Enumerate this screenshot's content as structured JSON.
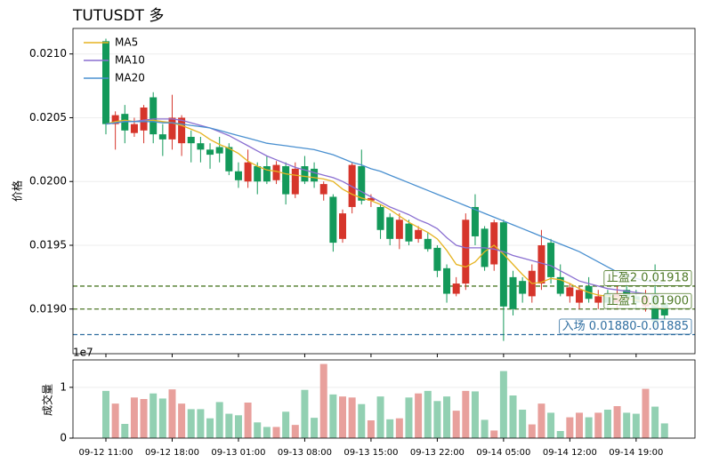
{
  "chart_data": {
    "type": "candlestick",
    "title": "TUTUSDT  多",
    "ylabel": "价格",
    "categories": [
      "09-12 11:00",
      null,
      null,
      null,
      null,
      null,
      null,
      "09-12 18:00",
      null,
      null,
      null,
      null,
      null,
      null,
      "09-13 01:00",
      null,
      null,
      null,
      null,
      null,
      null,
      "09-13 08:00",
      null,
      null,
      null,
      null,
      null,
      null,
      "09-13 15:00",
      null,
      null,
      null,
      null,
      null,
      null,
      "09-13 22:00",
      null,
      null,
      null,
      null,
      null,
      null,
      "09-14 05:00",
      null,
      null,
      null,
      null,
      null,
      null,
      "09-14 12:00",
      null,
      null,
      null,
      null,
      null,
      null,
      "09-14 19:00",
      null,
      null,
      null
    ],
    "open": [
      0.0211,
      0.02045,
      0.02053,
      0.02038,
      0.0204,
      0.02066,
      0.02037,
      0.02033,
      0.0203,
      0.02035,
      0.0203,
      0.02025,
      0.02027,
      0.02027,
      0.02008,
      0.02,
      0.02012,
      0.02012,
      0.02001,
      0.02012,
      0.0199,
      0.02012,
      0.0201,
      0.0199,
      0.01988,
      0.01955,
      0.0198,
      0.02012,
      0.01985,
      0.0198,
      0.01972,
      0.01955,
      0.01967,
      0.01955,
      0.01955,
      0.01948,
      0.01932,
      0.01912,
      0.0192,
      0.0198,
      0.01963,
      0.01935,
      0.01968,
      0.01925,
      0.01922,
      0.0191,
      0.0192,
      0.01952,
      0.01925,
      0.0191,
      0.01905,
      0.01918,
      0.01905,
      0.01912,
      0.01905,
      0.01915,
      0.0191,
      0.01902,
      0.01912,
      0.01905
    ],
    "high": [
      0.02112,
      0.02055,
      0.0206,
      0.0205,
      0.0206,
      0.0207,
      0.02045,
      0.02068,
      0.02052,
      0.0204,
      0.02035,
      0.0203,
      0.02035,
      0.0203,
      0.02015,
      0.02025,
      0.02015,
      0.0202,
      0.02016,
      0.02015,
      0.02015,
      0.0202,
      0.02015,
      0.02,
      0.0199,
      0.01978,
      0.02015,
      0.02025,
      0.0199,
      0.01982,
      0.01975,
      0.01975,
      0.0197,
      0.01965,
      0.0196,
      0.0195,
      0.01935,
      0.01925,
      0.01975,
      0.0199,
      0.01965,
      0.0197,
      0.0197,
      0.0193,
      0.01925,
      0.01935,
      0.01962,
      0.01955,
      0.01935,
      0.0192,
      0.01918,
      0.01925,
      0.01915,
      0.01915,
      0.01918,
      0.0192,
      0.01915,
      0.01915,
      0.01935,
      0.0191
    ],
    "low": [
      0.02037,
      0.02025,
      0.0203,
      0.02035,
      0.0203,
      0.0203,
      0.0202,
      0.02025,
      0.0202,
      0.02015,
      0.02015,
      0.0201,
      0.02015,
      0.02005,
      0.01995,
      0.01995,
      0.0199,
      0.01998,
      0.01998,
      0.01982,
      0.01987,
      0.01998,
      0.01995,
      0.01985,
      0.01945,
      0.01952,
      0.01975,
      0.01982,
      0.0198,
      0.01955,
      0.0195,
      0.01947,
      0.0195,
      0.01952,
      0.01945,
      0.01925,
      0.01905,
      0.0191,
      0.01915,
      0.0195,
      0.0193,
      0.0193,
      0.01875,
      0.01895,
      0.01905,
      0.01905,
      0.01915,
      0.0192,
      0.0191,
      0.01905,
      0.019,
      0.01905,
      0.019,
      0.019,
      0.019,
      0.01905,
      0.019,
      0.01898,
      0.01885,
      0.0189
    ],
    "close": [
      0.02045,
      0.02052,
      0.0204,
      0.02045,
      0.02058,
      0.02037,
      0.02033,
      0.0205,
      0.0205,
      0.0203,
      0.02025,
      0.02021,
      0.02022,
      0.02008,
      0.02001,
      0.02015,
      0.02,
      0.02,
      0.02013,
      0.0199,
      0.0201,
      0.02,
      0.02,
      0.01998,
      0.01952,
      0.01975,
      0.02013,
      0.01985,
      0.01987,
      0.01962,
      0.01955,
      0.0197,
      0.01953,
      0.01962,
      0.01947,
      0.0193,
      0.01912,
      0.0192,
      0.0197,
      0.01957,
      0.01933,
      0.01968,
      0.01902,
      0.019,
      0.01912,
      0.0193,
      0.0195,
      0.01925,
      0.01912,
      0.01917,
      0.01915,
      0.01908,
      0.0191,
      0.01905,
      0.01912,
      0.01908,
      0.01905,
      0.0191,
      0.0189,
      0.01895
    ],
    "up_color": "#d6352b",
    "down_color": "#13995a",
    "series": [
      {
        "name": "MA5",
        "color": "#e6b422",
        "values": [
          0.02045,
          0.02047,
          0.02048,
          0.02047,
          0.02048,
          0.02048,
          0.02047,
          0.02046,
          0.02044,
          0.02041,
          0.02038,
          0.02033,
          0.02029,
          0.02026,
          0.02022,
          0.02016,
          0.02012,
          0.02009,
          0.02008,
          0.02006,
          0.02005,
          0.02004,
          0.02003,
          0.02002,
          0.02,
          0.01994,
          0.0199,
          0.01987,
          0.01985,
          0.01982,
          0.01978,
          0.01973,
          0.01968,
          0.01964,
          0.0196,
          0.01955,
          0.01946,
          0.01935,
          0.01933,
          0.01937,
          0.01945,
          0.0195,
          0.01943,
          0.01935,
          0.01927,
          0.0192,
          0.01921,
          0.01924,
          0.01923,
          0.0192,
          0.01916,
          0.01913,
          0.01911,
          0.0191,
          0.01909,
          0.01908,
          0.01907,
          0.01905,
          0.01903,
          0.019
        ]
      },
      {
        "name": "MA10",
        "color": "#8a6fd1",
        "values": [
          0.02045,
          0.02046,
          0.02047,
          0.02047,
          0.02048,
          0.02049,
          0.02049,
          0.02049,
          0.02048,
          0.02046,
          0.02044,
          0.02042,
          0.02039,
          0.02036,
          0.02032,
          0.02028,
          0.02024,
          0.0202,
          0.02017,
          0.02014,
          0.02011,
          0.02009,
          0.02007,
          0.02005,
          0.02003,
          0.02,
          0.01996,
          0.01992,
          0.01988,
          0.01984,
          0.0198,
          0.01977,
          0.01974,
          0.0197,
          0.01967,
          0.01963,
          0.01956,
          0.0195,
          0.01948,
          0.01948,
          0.01948,
          0.01947,
          0.01945,
          0.01942,
          0.0194,
          0.01938,
          0.01936,
          0.01934,
          0.0193,
          0.01926,
          0.01922,
          0.0192,
          0.01918,
          0.01916,
          0.01915,
          0.01914,
          0.01913,
          0.01912,
          0.01911,
          0.0191
        ]
      },
      {
        "name": "MA20",
        "color": "#4a90d0",
        "values": [
          0.02045,
          0.02046,
          0.02047,
          0.02047,
          0.02047,
          0.02047,
          0.02046,
          0.02046,
          0.02045,
          0.02044,
          0.02043,
          0.02042,
          0.0204,
          0.02038,
          0.02036,
          0.02034,
          0.02032,
          0.0203,
          0.02029,
          0.02028,
          0.02027,
          0.02026,
          0.02025,
          0.02023,
          0.02021,
          0.02018,
          0.02015,
          0.02013,
          0.0201,
          0.02008,
          0.02005,
          0.02002,
          0.01999,
          0.01996,
          0.01993,
          0.0199,
          0.01987,
          0.01984,
          0.01981,
          0.01978,
          0.01975,
          0.01972,
          0.01969,
          0.01966,
          0.01963,
          0.0196,
          0.01957,
          0.01954,
          0.01951,
          0.01948,
          0.01945,
          0.01941,
          0.01937,
          0.01933,
          0.01929,
          0.01926,
          0.01924,
          0.01922,
          0.01921,
          0.0192
        ]
      }
    ],
    "levels": [
      {
        "label": "止盈2 0.01918",
        "value": 0.01918,
        "color": "#4f7a28"
      },
      {
        "label": "止盈1 0.01900",
        "value": 0.019,
        "color": "#4f7a28"
      },
      {
        "label": "入场 0.01880-0.01885",
        "value": 0.0188,
        "color": "#2f6ea0"
      }
    ],
    "ylim": [
      0.01865,
      0.0212
    ],
    "yticks": [
      {
        "value": 0.019,
        "label": "0.0190"
      },
      {
        "value": 0.0195,
        "label": "0.0195"
      },
      {
        "value": 0.02,
        "label": "0.0200"
      },
      {
        "value": 0.0205,
        "label": "0.0205"
      },
      {
        "value": 0.021,
        "label": "0.0210"
      }
    ],
    "grid": true,
    "legend": "upper left",
    "volume": {
      "ylabel": "成交量",
      "offset_label": "1e7",
      "ylim": [
        0,
        1.54
      ],
      "yticks": [
        0,
        1
      ],
      "up_color": "#e8a09c",
      "down_color": "#92d0b2",
      "values": [
        0.93,
        0.68,
        0.28,
        0.8,
        0.77,
        0.88,
        0.78,
        0.96,
        0.68,
        0.57,
        0.57,
        0.39,
        0.71,
        0.48,
        0.45,
        0.7,
        0.31,
        0.22,
        0.22,
        0.52,
        0.26,
        0.95,
        0.4,
        1.46,
        0.86,
        0.82,
        0.8,
        0.67,
        0.35,
        0.82,
        0.37,
        0.39,
        0.8,
        0.88,
        0.93,
        0.73,
        0.82,
        0.54,
        0.93,
        0.92,
        0.36,
        0.15,
        1.32,
        0.84,
        0.56,
        0.27,
        0.68,
        0.5,
        0.14,
        0.41,
        0.5,
        0.41,
        0.5,
        0.56,
        0.63,
        0.5,
        0.48,
        0.97,
        0.62,
        0.29
      ]
    }
  }
}
